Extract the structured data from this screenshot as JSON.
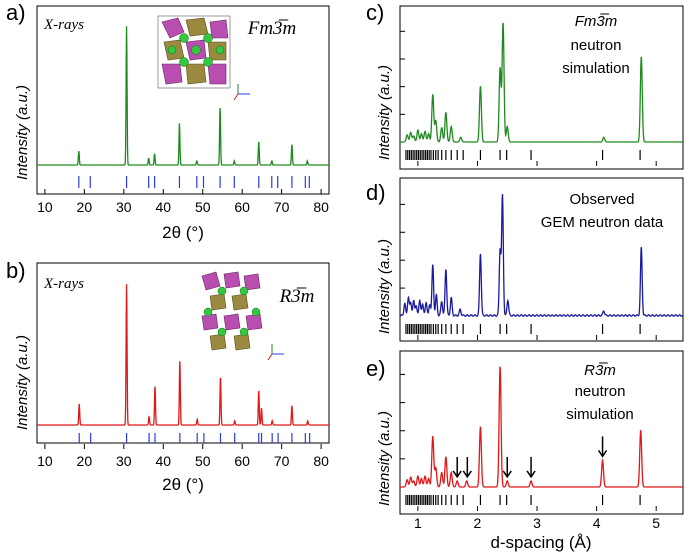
{
  "figure": {
    "panels": {
      "a": {
        "label": "a)",
        "source": "X-rays",
        "space_group": "Fm3̅m",
        "ylabel": "Intensity (a.u.)",
        "xlabel": "2θ (°)",
        "color": "#1e8a1e",
        "tick_color": "#2a3be0"
      },
      "b": {
        "label": "b)",
        "source": "X-rays",
        "space_group": "R3̅m",
        "ylabel": "Intensity (a.u.)",
        "xlabel": "2θ (°)",
        "color": "#e01818",
        "tick_color": "#2a3be0"
      },
      "c": {
        "label": "c)",
        "space_group": "Fm3̅m",
        "note_lines": [
          "neutron",
          "simulation"
        ],
        "ylabel": "Intensity (a.u.)",
        "color": "#1e8a1e"
      },
      "d": {
        "label": "d)",
        "note_lines": [
          "Observed",
          "GEM neutron data"
        ],
        "ylabel": "Intensity (a.u.)",
        "color": "#1a1aa0"
      },
      "e": {
        "label": "e)",
        "space_group": "R3̅m",
        "note_lines": [
          "neutron",
          "simulation"
        ],
        "ylabel": "Intensity (a.u.)",
        "xlabel": "d-spacing (Å)",
        "color": "#e01818"
      }
    }
  },
  "chart_data": [
    {
      "id": "a",
      "type": "line",
      "title": "Fm3̅m",
      "annotation": "X-rays",
      "xlabel": "2θ (°)",
      "ylabel": "Intensity (a.u.)",
      "xlim": [
        8,
        82
      ],
      "xticks": [
        10,
        20,
        30,
        40,
        50,
        60,
        70,
        80
      ],
      "ylim": [
        0,
        1.05
      ],
      "peaks": [
        [
          18.6,
          0.1
        ],
        [
          30.7,
          1.0
        ],
        [
          36.3,
          0.05
        ],
        [
          37.8,
          0.08
        ],
        [
          44.1,
          0.3
        ],
        [
          48.5,
          0.03
        ],
        [
          54.4,
          0.42
        ],
        [
          58.0,
          0.03
        ],
        [
          64.2,
          0.17
        ],
        [
          67.5,
          0.03
        ],
        [
          72.6,
          0.15
        ],
        [
          76.5,
          0.03
        ]
      ],
      "reflection_ticks": [
        18.6,
        21.5,
        30.7,
        36.3,
        37.8,
        44.1,
        48.5,
        50.2,
        54.4,
        58.0,
        64.2,
        67.5,
        69.0,
        72.6,
        76.0,
        77.0
      ]
    },
    {
      "id": "b",
      "type": "line",
      "title": "R3̅m",
      "annotation": "X-rays",
      "xlabel": "2θ (°)",
      "ylabel": "Intensity (a.u.)",
      "xlim": [
        8,
        82
      ],
      "xticks": [
        10,
        20,
        30,
        40,
        50,
        60,
        70,
        80
      ],
      "ylim": [
        0,
        1.05
      ],
      "peaks": [
        [
          18.7,
          0.15
        ],
        [
          30.7,
          1.0
        ],
        [
          36.4,
          0.06
        ],
        [
          37.9,
          0.28
        ],
        [
          44.2,
          0.46
        ],
        [
          48.6,
          0.04
        ],
        [
          54.5,
          0.35
        ],
        [
          58.1,
          0.03
        ],
        [
          64.2,
          0.25
        ],
        [
          64.9,
          0.12
        ],
        [
          67.6,
          0.03
        ],
        [
          72.6,
          0.14
        ],
        [
          76.6,
          0.03
        ]
      ],
      "reflection_ticks": [
        18.7,
        21.6,
        30.7,
        36.4,
        37.9,
        44.2,
        48.6,
        50.3,
        54.5,
        58.1,
        64.2,
        64.9,
        67.6,
        69.1,
        72.6,
        76.0,
        77.1
      ]
    },
    {
      "id": "c",
      "type": "line",
      "title": "Fm3̅m neutron simulation",
      "ylabel": "Intensity (a.u.)",
      "xlim": [
        0.7,
        5.45
      ],
      "xticks": [
        1,
        2,
        3,
        4,
        5
      ],
      "ylim": [
        0,
        1.05
      ],
      "peaks": [
        [
          0.82,
          0.06
        ],
        [
          0.88,
          0.08
        ],
        [
          0.93,
          0.05
        ],
        [
          1.0,
          0.1
        ],
        [
          1.06,
          0.07
        ],
        [
          1.12,
          0.09
        ],
        [
          1.18,
          0.07
        ],
        [
          1.25,
          0.4
        ],
        [
          1.3,
          0.18
        ],
        [
          1.4,
          0.12
        ],
        [
          1.47,
          0.25
        ],
        [
          1.56,
          0.13
        ],
        [
          1.72,
          0.04
        ],
        [
          2.05,
          0.47
        ],
        [
          2.38,
          0.62
        ],
        [
          2.43,
          1.0
        ],
        [
          2.5,
          0.13
        ],
        [
          4.12,
          0.04
        ],
        [
          4.75,
          0.72
        ]
      ],
      "reflection_ticks": [
        0.8,
        0.83,
        0.86,
        0.89,
        0.92,
        0.95,
        0.98,
        1.01,
        1.04,
        1.07,
        1.1,
        1.13,
        1.16,
        1.19,
        1.22,
        1.26,
        1.3,
        1.34,
        1.4,
        1.47,
        1.56,
        1.66,
        1.76,
        2.05,
        2.38,
        2.49,
        2.9,
        4.1,
        4.73
      ]
    },
    {
      "id": "d",
      "type": "line",
      "title": "Observed GEM neutron data",
      "ylabel": "Intensity (a.u.)",
      "xlim": [
        0.7,
        5.45
      ],
      "xticks": [
        1,
        2,
        3,
        4,
        5
      ],
      "ylim": [
        0,
        1.05
      ],
      "peaks": [
        [
          0.78,
          0.1
        ],
        [
          0.84,
          0.15
        ],
        [
          0.88,
          0.11
        ],
        [
          0.93,
          0.12
        ],
        [
          0.97,
          0.08
        ],
        [
          1.03,
          0.13
        ],
        [
          1.08,
          0.1
        ],
        [
          1.14,
          0.11
        ],
        [
          1.2,
          0.09
        ],
        [
          1.25,
          0.42
        ],
        [
          1.31,
          0.17
        ],
        [
          1.4,
          0.12
        ],
        [
          1.47,
          0.39
        ],
        [
          1.56,
          0.15
        ],
        [
          1.71,
          0.05
        ],
        [
          2.05,
          0.52
        ],
        [
          2.38,
          0.55
        ],
        [
          2.42,
          1.0
        ],
        [
          2.51,
          0.13
        ],
        [
          4.12,
          0.04
        ],
        [
          4.75,
          0.57
        ]
      ],
      "reflection_ticks": [
        0.8,
        0.83,
        0.86,
        0.89,
        0.92,
        0.95,
        0.98,
        1.01,
        1.04,
        1.07,
        1.1,
        1.13,
        1.16,
        1.19,
        1.22,
        1.26,
        1.3,
        1.34,
        1.4,
        1.47,
        1.56,
        1.66,
        1.76,
        2.05,
        2.38,
        2.49,
        2.9,
        4.1,
        4.73
      ]
    },
    {
      "id": "e",
      "type": "line",
      "title": "R3̅m neutron simulation",
      "xlabel": "d-spacing (Å)",
      "ylabel": "Intensity (a.u.)",
      "xlim": [
        0.7,
        5.45
      ],
      "xticks": [
        1,
        2,
        3,
        4,
        5
      ],
      "ylim": [
        0,
        1.05
      ],
      "peaks": [
        [
          0.82,
          0.06
        ],
        [
          0.88,
          0.08
        ],
        [
          0.93,
          0.05
        ],
        [
          1.0,
          0.09
        ],
        [
          1.06,
          0.07
        ],
        [
          1.12,
          0.09
        ],
        [
          1.18,
          0.07
        ],
        [
          1.25,
          0.42
        ],
        [
          1.3,
          0.16
        ],
        [
          1.4,
          0.12
        ],
        [
          1.47,
          0.25
        ],
        [
          1.56,
          0.12
        ],
        [
          1.66,
          0.05
        ],
        [
          1.82,
          0.05
        ],
        [
          2.05,
          0.5
        ],
        [
          2.38,
          1.0
        ],
        [
          2.5,
          0.05
        ],
        [
          2.9,
          0.05
        ],
        [
          4.1,
          0.22
        ],
        [
          4.74,
          0.47
        ]
      ],
      "arrows_at": [
        1.66,
        1.83,
        2.5,
        2.9,
        4.1
      ],
      "reflection_ticks": [
        0.8,
        0.83,
        0.86,
        0.89,
        0.92,
        0.95,
        0.98,
        1.01,
        1.04,
        1.07,
        1.1,
        1.13,
        1.16,
        1.19,
        1.22,
        1.26,
        1.3,
        1.34,
        1.4,
        1.47,
        1.56,
        1.66,
        1.76,
        2.05,
        2.38,
        2.49,
        2.9,
        4.1,
        4.73
      ]
    }
  ]
}
